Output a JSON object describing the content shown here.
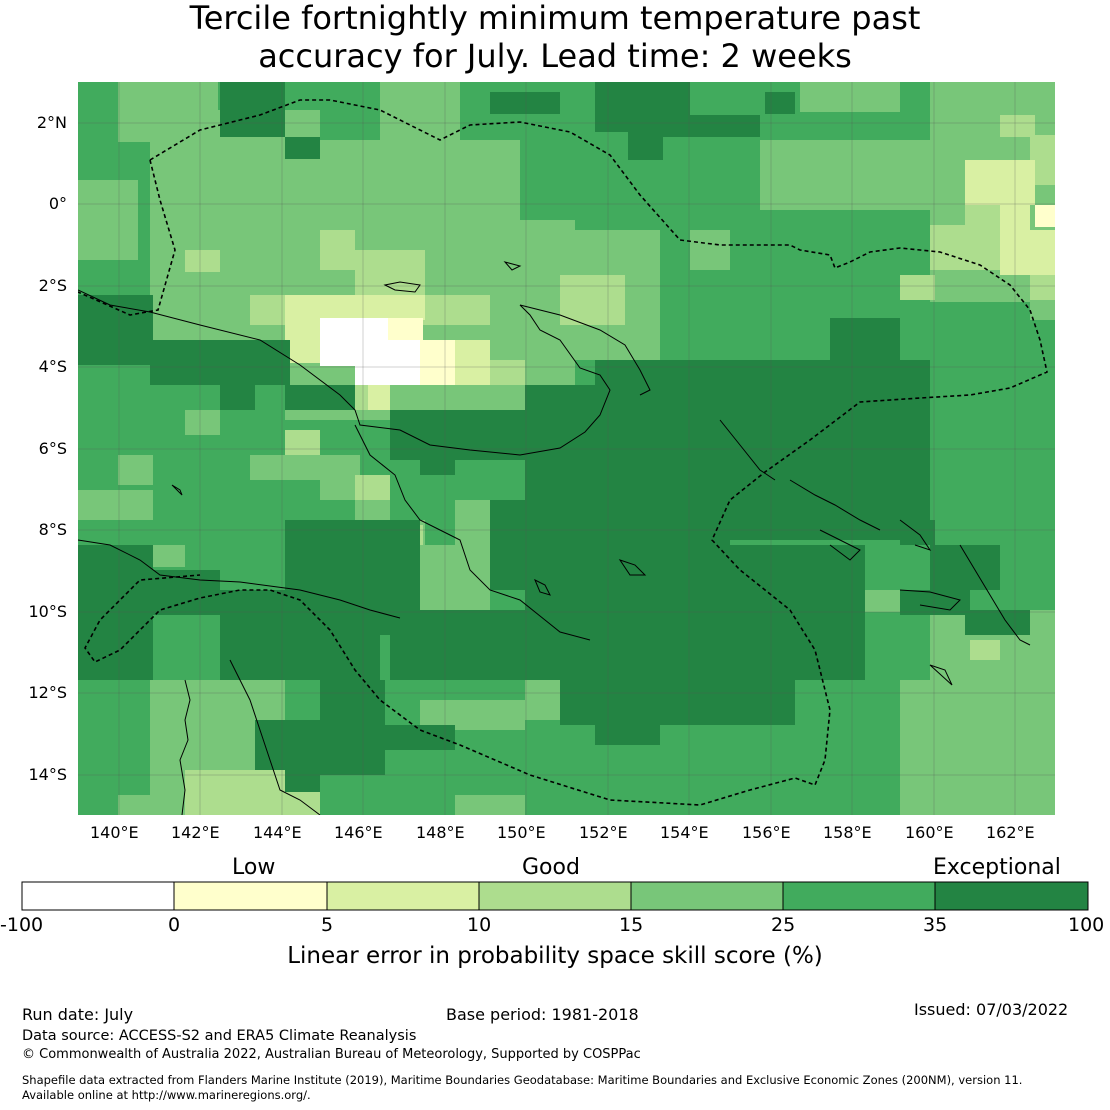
{
  "title_line1": "Tercile fortnightly minimum temperature past",
  "title_line2": "accuracy for July. Lead time: 2 weeks",
  "longitude_labels": [
    "140°E",
    "142°E",
    "144°E",
    "146°E",
    "148°E",
    "150°E",
    "152°E",
    "154°E",
    "156°E",
    "158°E",
    "160°E",
    "162°E"
  ],
  "latitude_labels": [
    "2°N",
    "0°",
    "2°S",
    "4°S",
    "6°S",
    "8°S",
    "10°S",
    "12°S",
    "14°S"
  ],
  "colorbar": {
    "category_labels": [
      "Low",
      "Good",
      "Exceptional"
    ],
    "tick_labels": [
      "-100",
      "0",
      "5",
      "10",
      "15",
      "25",
      "35",
      "100"
    ],
    "colors": [
      "#ffffff",
      "#ffffcc",
      "#d9f0a3",
      "#addd8e",
      "#78c679",
      "#41ab5d",
      "#238443"
    ],
    "axis_label": "Linear error in probability space skill score (%)"
  },
  "footer": {
    "run_date": "Run date: July",
    "base_period": "Base period: 1981-2018",
    "issued": "Issued: 07/03/2022",
    "data_source": "Data source: ACCESS-S2 and ERA5 Climate Reanalysis",
    "copyright": "© Commonwealth of Australia 2022, Australian Bureau of Meteorology, Supported by COSPPac",
    "shapefile_line1": "Shapefile data extracted from Flanders Marine Institute (2019), Maritime Boundaries Geodatabase: Maritime Boundaries and Exclusive Economic Zones (200NM), version 11.",
    "shapefile_line2": "Available online at http://www.marineregions.org/."
  }
}
